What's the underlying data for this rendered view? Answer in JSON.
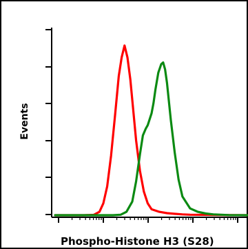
{
  "chart_data": {
    "type": "line",
    "title": "",
    "xlabel": "Phospho-Histone H3 (S28)",
    "ylabel": "Events",
    "xlim": [
      0,
      1
    ],
    "ylim": [
      0,
      1
    ],
    "x_scale": "log",
    "grid": false,
    "legend": "none",
    "series": [
      {
        "color": "#ff0000",
        "x": [
          0.0,
          0.15,
          0.2,
          0.23,
          0.25,
          0.27,
          0.29,
          0.31,
          0.33,
          0.345,
          0.36,
          0.375,
          0.39,
          0.405,
          0.42,
          0.44,
          0.46,
          0.48,
          0.5,
          0.54,
          0.58,
          0.62,
          0.66,
          0.7,
          0.8,
          0.9,
          1.0
        ],
        "y": [
          0.0,
          0.0,
          0.002,
          0.02,
          0.07,
          0.17,
          0.35,
          0.58,
          0.82,
          0.93,
          1.0,
          0.93,
          0.8,
          0.62,
          0.44,
          0.26,
          0.14,
          0.07,
          0.035,
          0.02,
          0.012,
          0.008,
          0.005,
          0.003,
          0.002,
          0.001,
          0.0
        ]
      },
      {
        "color": "#0b8a12",
        "x": [
          0.0,
          0.3,
          0.34,
          0.37,
          0.4,
          0.42,
          0.44,
          0.455,
          0.47,
          0.48,
          0.5,
          0.51,
          0.52,
          0.535,
          0.55,
          0.56,
          0.57,
          0.58,
          0.59,
          0.6,
          0.62,
          0.64,
          0.66,
          0.7,
          0.74,
          0.78,
          0.82,
          0.86,
          0.9,
          1.0
        ],
        "y": [
          0.0,
          0.0,
          0.003,
          0.02,
          0.08,
          0.2,
          0.36,
          0.47,
          0.51,
          0.53,
          0.6,
          0.66,
          0.74,
          0.84,
          0.89,
          0.9,
          0.86,
          0.78,
          0.67,
          0.56,
          0.37,
          0.21,
          0.11,
          0.04,
          0.02,
          0.01,
          0.005,
          0.003,
          0.001,
          0.0
        ]
      }
    ]
  }
}
